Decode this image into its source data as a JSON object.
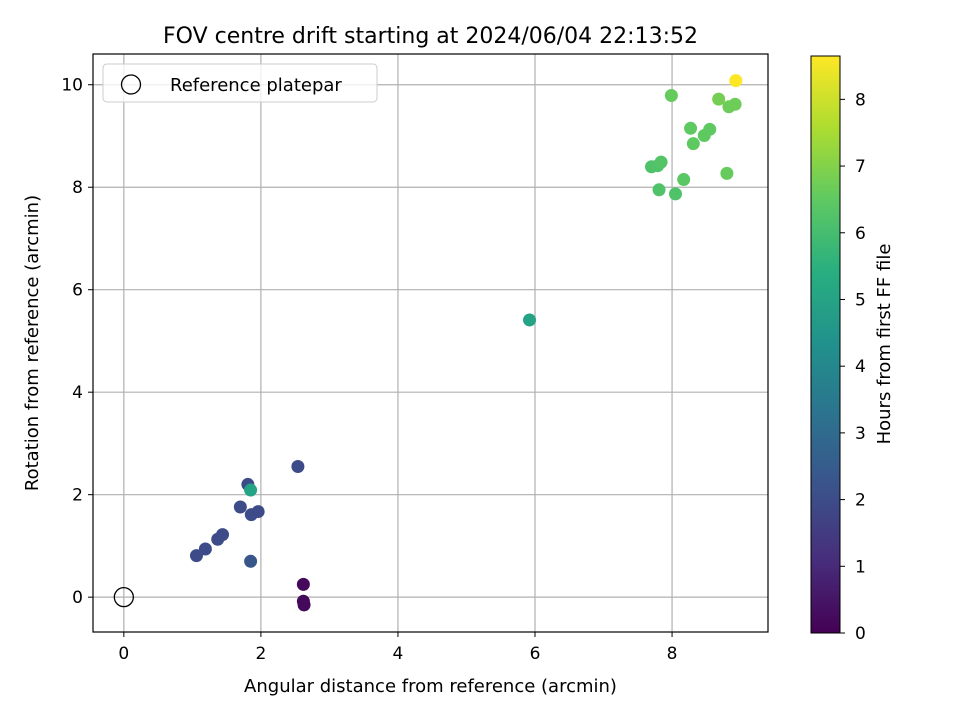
{
  "chart_data": {
    "type": "scatter",
    "title": "FOV centre drift starting at 2024/06/04 22:13:52",
    "xlabel": "Angular distance from reference (arcmin)",
    "ylabel": "Rotation from reference (arcmin)",
    "xlim": [
      -0.45,
      9.4
    ],
    "ylim": [
      -0.68,
      10.6
    ],
    "xticks": [
      0,
      2,
      4,
      6,
      8
    ],
    "yticks": [
      0,
      2,
      4,
      6,
      8,
      10
    ],
    "grid": true,
    "legend": {
      "position": "top-left",
      "entries": [
        "Reference platepar"
      ]
    },
    "reference_point": {
      "x": 0,
      "y": 0,
      "label": "Reference platepar"
    },
    "colorbar": {
      "label": "Hours from first FF file",
      "colormap": "viridis",
      "range": [
        0,
        8.65
      ],
      "ticks": [
        0,
        1,
        2,
        3,
        4,
        5,
        6,
        7,
        8
      ]
    },
    "points": [
      {
        "x": 2.62,
        "y": 0.25,
        "hours": 0.2
      },
      {
        "x": 2.62,
        "y": -0.08,
        "hours": 0.2
      },
      {
        "x": 2.63,
        "y": -0.15,
        "hours": 0.2
      },
      {
        "x": 1.06,
        "y": 0.81,
        "hours": 2.0
      },
      {
        "x": 1.19,
        "y": 0.94,
        "hours": 2.0
      },
      {
        "x": 1.37,
        "y": 1.13,
        "hours": 2.0
      },
      {
        "x": 1.44,
        "y": 1.22,
        "hours": 2.0
      },
      {
        "x": 1.7,
        "y": 1.76,
        "hours": 2.0
      },
      {
        "x": 1.81,
        "y": 2.2,
        "hours": 2.0
      },
      {
        "x": 1.86,
        "y": 1.61,
        "hours": 2.0
      },
      {
        "x": 1.96,
        "y": 1.67,
        "hours": 2.0
      },
      {
        "x": 2.54,
        "y": 2.55,
        "hours": 2.0
      },
      {
        "x": 1.85,
        "y": 0.7,
        "hours": 2.3
      },
      {
        "x": 1.85,
        "y": 2.09,
        "hours": 5.0
      },
      {
        "x": 5.92,
        "y": 5.41,
        "hours": 5.0
      },
      {
        "x": 7.7,
        "y": 8.4,
        "hours": 6.2
      },
      {
        "x": 7.79,
        "y": 8.42,
        "hours": 6.2
      },
      {
        "x": 7.84,
        "y": 8.49,
        "hours": 6.3
      },
      {
        "x": 7.81,
        "y": 7.95,
        "hours": 6.2
      },
      {
        "x": 8.05,
        "y": 7.87,
        "hours": 6.2
      },
      {
        "x": 8.17,
        "y": 8.15,
        "hours": 6.4
      },
      {
        "x": 7.99,
        "y": 9.79,
        "hours": 6.6
      },
      {
        "x": 8.27,
        "y": 9.15,
        "hours": 6.5
      },
      {
        "x": 8.31,
        "y": 8.85,
        "hours": 6.5
      },
      {
        "x": 8.47,
        "y": 9.01,
        "hours": 6.5
      },
      {
        "x": 8.55,
        "y": 9.13,
        "hours": 6.5
      },
      {
        "x": 8.68,
        "y": 9.72,
        "hours": 6.8
      },
      {
        "x": 8.8,
        "y": 8.27,
        "hours": 6.6
      },
      {
        "x": 8.83,
        "y": 9.57,
        "hours": 6.7
      },
      {
        "x": 8.92,
        "y": 9.62,
        "hours": 6.7
      },
      {
        "x": 8.93,
        "y": 10.08,
        "hours": 8.65
      }
    ]
  }
}
